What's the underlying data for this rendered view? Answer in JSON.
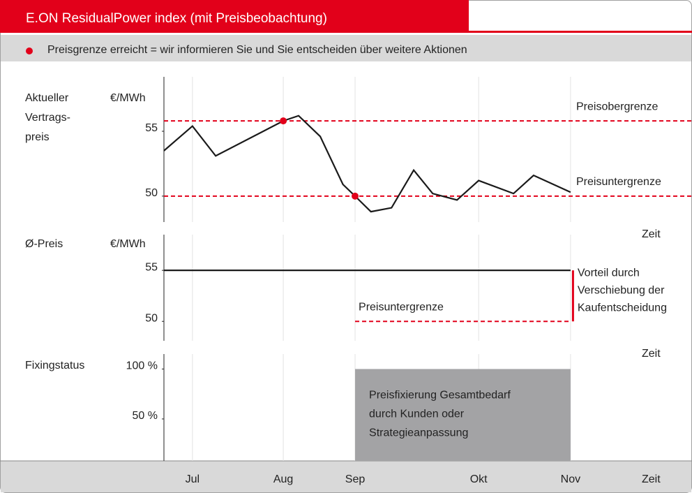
{
  "header": {
    "title": "E.ON ResidualPower index (mit Preisbeobachtung)",
    "legend": "Preisgrenze erreicht = wir informieren Sie und Sie entscheiden über weitere Aktionen"
  },
  "chart_data": [
    {
      "type": "line",
      "y_label": [
        "Aktueller",
        "Vertrags-",
        "preis"
      ],
      "y_unit": "€/MWh",
      "x_label": "Zeit",
      "xlim": [
        0,
        100
      ],
      "ylim": [
        48,
        59.2
      ],
      "yticks": [
        50,
        55
      ],
      "color": "#1a1a1a",
      "x": [
        0,
        5.4,
        9.8,
        22.6,
        25.5,
        29.6,
        33.9,
        36.2,
        39.2,
        43.1,
        47.3,
        50.9,
        55.5,
        59.6,
        66.2,
        70.0,
        77.0
      ],
      "values": [
        53.5,
        55.4,
        53.1,
        55.8,
        56.2,
        54.6,
        50.9,
        50.0,
        48.8,
        49.1,
        52.0,
        50.2,
        49.7,
        51.2,
        50.2,
        51.6,
        50.3
      ],
      "highlight_points": [
        3,
        7
      ],
      "highlight_color": "#e2001a",
      "reference_lines": [
        {
          "label": "Preisobergrenze",
          "value": 55.8,
          "color": "#e2001a"
        },
        {
          "label": "Preisuntergrenze",
          "value": 50,
          "color": "#e2001a"
        }
      ]
    },
    {
      "type": "line",
      "y_label": [
        "Ø-Preis"
      ],
      "y_unit": "€/MWh",
      "x_label": "Zeit",
      "xlim": [
        0,
        100
      ],
      "ylim": [
        48.1,
        58.5
      ],
      "yticks": [
        50,
        55
      ],
      "color": "#1a1a1a",
      "x": [
        0,
        77.0
      ],
      "values": [
        55,
        55
      ],
      "reference_lines": [
        {
          "label": "Preisuntergrenze",
          "value": 50,
          "color": "#e2001a",
          "x_range": [
            36.2,
            77.0
          ]
        }
      ],
      "annotation": {
        "lines": [
          "Vorteil durch",
          "Verschiebung der",
          "Kaufentscheidung"
        ],
        "x": 77.0,
        "color": "#e2001a"
      }
    },
    {
      "type": "bar",
      "y_label": [
        "Fixingstatus"
      ],
      "x_label": "Zeit",
      "xlim": [
        0,
        100
      ],
      "ylim": [
        8,
        115
      ],
      "yticks": [
        {
          "value": 100,
          "label": "100 %"
        },
        {
          "value": 50,
          "label": "50 %"
        }
      ],
      "xticks": [
        {
          "value": 5.4,
          "label": "Jul"
        },
        {
          "value": 22.6,
          "label": "Aug"
        },
        {
          "value": 36.2,
          "label": "Sep"
        },
        {
          "value": 59.6,
          "label": "Okt"
        },
        {
          "value": 77.0,
          "label": "Nov"
        }
      ],
      "bars": [
        {
          "x_range": [
            36.2,
            77.0
          ],
          "value": 100,
          "color": "#a3a3a5",
          "lines": [
            "Preisfixierung Gesamtbedarf",
            "durch Kunden oder",
            "Strategieanpassung"
          ]
        }
      ]
    }
  ]
}
